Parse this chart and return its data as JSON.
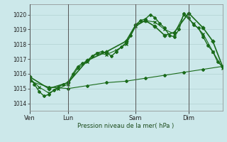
{
  "background_color": "#cce8ea",
  "grid_color": "#aacccc",
  "line_color": "#1a6b1a",
  "title": "Pression niveau de la mer( hPa )",
  "ylim": [
    1013.5,
    1020.7
  ],
  "yticks": [
    1014,
    1015,
    1016,
    1017,
    1018,
    1019,
    1020
  ],
  "day_labels": [
    "Ven",
    "Lun",
    "Sam",
    "Dim"
  ],
  "day_positions": [
    0,
    8,
    22,
    33
  ],
  "xlim": [
    0,
    40
  ],
  "line_flat": {
    "x": [
      0,
      4,
      8,
      12,
      16,
      20,
      24,
      28,
      32,
      36,
      40
    ],
    "y": [
      1015.5,
      1015.1,
      1015.0,
      1015.2,
      1015.4,
      1015.5,
      1015.7,
      1015.9,
      1016.1,
      1016.3,
      1016.5
    ],
    "marker": "D",
    "markersize": 2.0,
    "linewidth": 0.8,
    "linestyle": "-"
  },
  "line_main": {
    "x": [
      0,
      1,
      2,
      3,
      4,
      5,
      6,
      7,
      8,
      9,
      10,
      11,
      12,
      13,
      14,
      15,
      16,
      17,
      18,
      19,
      20,
      21,
      22,
      23,
      24,
      25,
      26,
      27,
      28,
      29,
      30,
      31,
      32,
      33,
      34,
      35,
      36,
      37,
      38,
      39,
      40
    ],
    "y": [
      1015.8,
      1015.3,
      1014.8,
      1014.5,
      1014.6,
      1014.9,
      1015.1,
      1015.3,
      1015.4,
      1016.0,
      1016.5,
      1016.7,
      1016.9,
      1017.2,
      1017.4,
      1017.5,
      1017.4,
      1017.2,
      1017.5,
      1017.8,
      1018.1,
      1018.6,
      1019.3,
      1019.6,
      1019.7,
      1020.0,
      1019.8,
      1019.4,
      1019.1,
      1018.6,
      1018.5,
      1019.0,
      1020.1,
      1019.8,
      1019.3,
      1019.1,
      1018.5,
      1017.9,
      1017.5,
      1016.8,
      1016.5
    ],
    "marker": "D",
    "markersize": 2.0,
    "linewidth": 1.0,
    "linestyle": "-"
  },
  "line_cross": {
    "x": [
      0,
      2,
      4,
      6,
      8,
      10,
      12,
      14,
      16,
      18,
      20,
      22,
      24,
      26,
      28,
      30,
      32,
      34,
      36,
      38,
      40
    ],
    "y": [
      1015.7,
      1015.1,
      1014.7,
      1015.0,
      1015.3,
      1016.4,
      1016.8,
      1017.4,
      1017.3,
      1017.6,
      1018.0,
      1019.2,
      1019.6,
      1019.5,
      1019.0,
      1018.7,
      1020.0,
      1019.4,
      1018.7,
      1017.5,
      1016.4
    ],
    "marker": "x",
    "markersize": 3.5,
    "linewidth": 0.8,
    "linestyle": "-"
  },
  "line_sparse": {
    "x": [
      0,
      4,
      8,
      12,
      16,
      20,
      22,
      24,
      26,
      28,
      30,
      33,
      36,
      38,
      40
    ],
    "y": [
      1015.8,
      1015.0,
      1015.4,
      1016.9,
      1017.5,
      1018.2,
      1019.3,
      1019.6,
      1019.2,
      1018.6,
      1018.8,
      1020.1,
      1019.1,
      1018.2,
      1016.5
    ],
    "marker": "D",
    "markersize": 2.5,
    "linewidth": 1.2,
    "linestyle": "-"
  }
}
